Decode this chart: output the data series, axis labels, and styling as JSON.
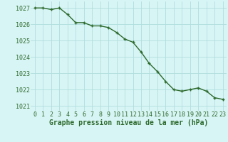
{
  "x": [
    0,
    1,
    2,
    3,
    4,
    5,
    6,
    7,
    8,
    9,
    10,
    11,
    12,
    13,
    14,
    15,
    16,
    17,
    18,
    19,
    20,
    21,
    22,
    23
  ],
  "y": [
    1027.0,
    1027.0,
    1026.9,
    1027.0,
    1026.6,
    1026.1,
    1026.1,
    1025.9,
    1025.9,
    1025.8,
    1025.5,
    1025.1,
    1024.9,
    1024.3,
    1023.6,
    1023.1,
    1022.5,
    1022.0,
    1021.9,
    1022.0,
    1022.1,
    1021.9,
    1021.5,
    1021.4
  ],
  "line_color": "#2d6a2d",
  "marker": "+",
  "marker_color": "#2d6a2d",
  "bg_color": "#d8f5f5",
  "grid_color": "#b0dede",
  "xlabel": "Graphe pression niveau de la mer (hPa)",
  "xlabel_color": "#2d6a2d",
  "tick_color": "#2d6a2d",
  "ylim": [
    1020.7,
    1027.4
  ],
  "xlim": [
    -0.5,
    23.5
  ],
  "yticks": [
    1021,
    1022,
    1023,
    1024,
    1025,
    1026,
    1027
  ],
  "xticks": [
    0,
    1,
    2,
    3,
    4,
    5,
    6,
    7,
    8,
    9,
    10,
    11,
    12,
    13,
    14,
    15,
    16,
    17,
    18,
    19,
    20,
    21,
    22,
    23
  ],
  "xtick_labels": [
    "0",
    "1",
    "2",
    "3",
    "4",
    "5",
    "6",
    "7",
    "8",
    "9",
    "10",
    "11",
    "12",
    "13",
    "14",
    "15",
    "16",
    "17",
    "18",
    "19",
    "20",
    "21",
    "22",
    "23"
  ],
  "font_size_xlabel": 7,
  "font_size_ticks": 6,
  "line_width": 1.0,
  "marker_size": 3.5
}
